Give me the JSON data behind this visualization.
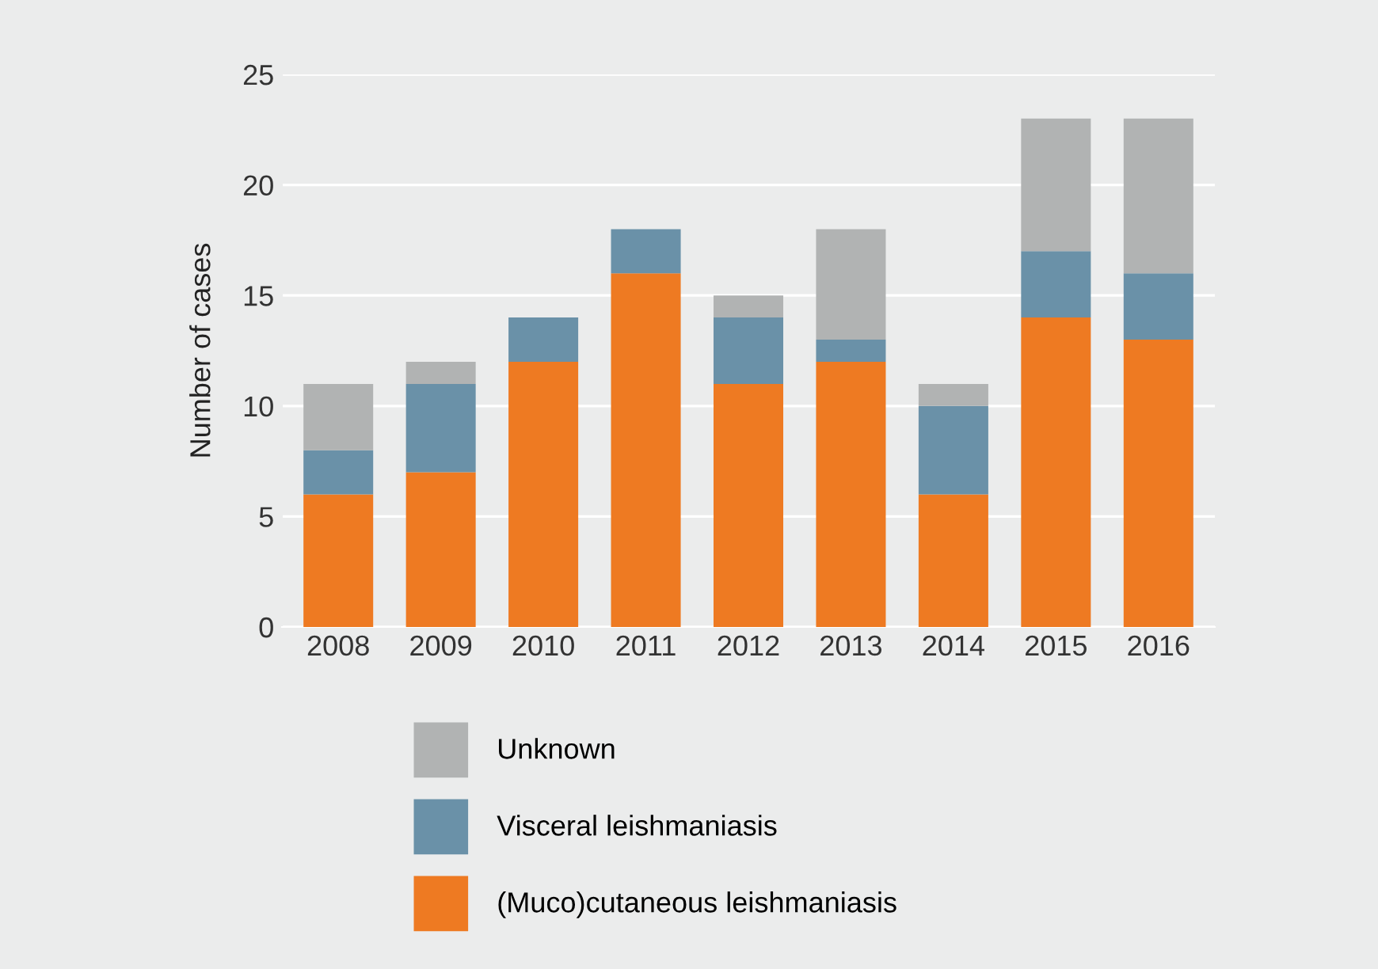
{
  "chart_data": {
    "type": "bar",
    "stacked": true,
    "ylabel": "Number of cases",
    "categories": [
      "2008",
      "2009",
      "2010",
      "2011",
      "2012",
      "2013",
      "2014",
      "2015",
      "2016"
    ],
    "series": [
      {
        "name": "(Muco)cutaneous leishmaniasis",
        "color": "#ee7a22",
        "values": [
          6,
          7,
          12,
          16,
          11,
          12,
          6,
          14,
          13
        ]
      },
      {
        "name": "Visceral leishmaniasis",
        "color": "#6a91a8",
        "values": [
          2,
          4,
          2,
          2,
          3,
          1,
          4,
          3,
          3
        ]
      },
      {
        "name": "Unknown",
        "color": "#b1b3b3",
        "values": [
          3,
          1,
          0,
          0,
          1,
          5,
          1,
          6,
          7
        ]
      }
    ],
    "ylim": [
      0,
      25
    ],
    "yticks": [
      0,
      5,
      10,
      15,
      20,
      25
    ],
    "grid": "y",
    "legend": "bottom"
  }
}
